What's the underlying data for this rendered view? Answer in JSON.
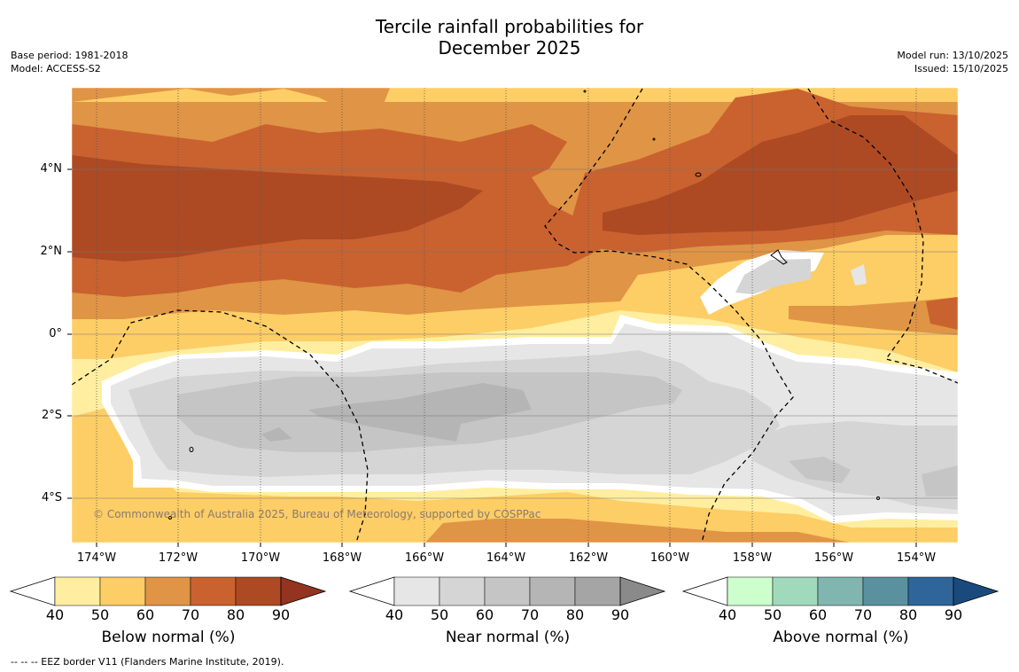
{
  "title": {
    "line1": "Tercile rainfall probabilities for",
    "line2": "December 2025"
  },
  "meta_left": {
    "base_period": "Base period: 1981-2018",
    "model": "Model: ACCESS-S2"
  },
  "meta_right": {
    "model_run": "Model run: 13/10/2025",
    "issued": "Issued: 15/10/2025"
  },
  "map": {
    "lon_labels": [
      "174°W",
      "172°W",
      "170°W",
      "168°W",
      "166°W",
      "164°W",
      "162°W",
      "160°W",
      "158°W",
      "156°W",
      "154°W"
    ],
    "lat_labels": [
      "4°N",
      "2°N",
      "0°",
      "2°S",
      "4°S"
    ],
    "copyright": "© Commonwealth of Australia 2025, Bureau of Meteorology, supported by COSPPac"
  },
  "colorbars": [
    {
      "label": "Below normal (%)",
      "ticks": [
        "40",
        "50",
        "60",
        "70",
        "80",
        "90"
      ],
      "colors": [
        "#ffeea0",
        "#fdcd66",
        "#e09445",
        "#c9622f",
        "#ad4a24",
        "#933320"
      ]
    },
    {
      "label": "Near normal (%)",
      "ticks": [
        "40",
        "50",
        "60",
        "70",
        "80",
        "90"
      ],
      "colors": [
        "#e6e6e6",
        "#d5d5d5",
        "#c5c5c5",
        "#b5b5b5",
        "#a5a5a5",
        "#8a8a8a"
      ]
    },
    {
      "label": "Above normal (%)",
      "ticks": [
        "40",
        "50",
        "60",
        "70",
        "80",
        "90"
      ],
      "colors": [
        "#ccffcc",
        "#a1d9bd",
        "#80b5b0",
        "#5b919e",
        "#2f6599",
        "#1a4a7d"
      ]
    }
  ],
  "footnote": "-- -- -- EEZ border V11 (Flanders Marine Institute, 2019)."
}
